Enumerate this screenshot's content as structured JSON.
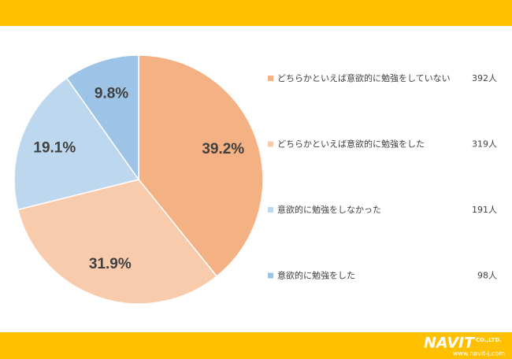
{
  "chart_data": {
    "type": "pie",
    "categories": [
      "どちらかといえば意欲的に勉強をしていない",
      "どちらかといえば意欲的に勉強をした",
      "意欲的に勉強をしなかった",
      "意欲的に勉強をした"
    ],
    "values": [
      39.2,
      31.9,
      19.1,
      9.8
    ],
    "value_labels": [
      "39.2%",
      "31.9%",
      "19.1%",
      "9.8%"
    ],
    "counts": [
      "392人",
      "319人",
      "191人",
      "98人"
    ],
    "colors": [
      "#f4b183",
      "#f8cbad",
      "#bdd7ee",
      "#9dc3e6"
    ]
  },
  "footer": {
    "logo": "NAVIT",
    "company": "CO.,LTD.",
    "url": "www.navit-j.com"
  }
}
